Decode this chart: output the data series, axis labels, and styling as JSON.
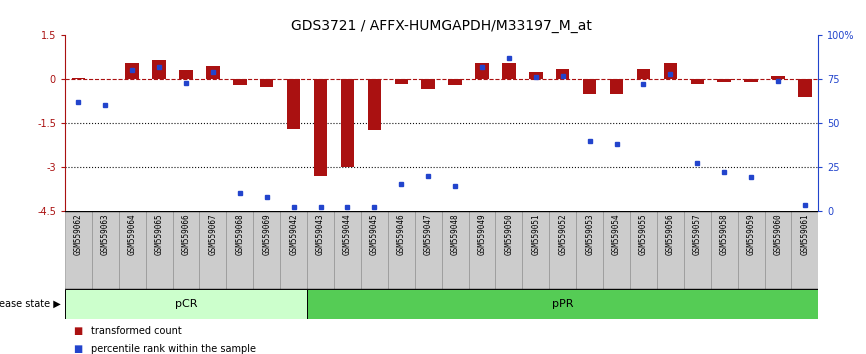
{
  "title": "GDS3721 / AFFX-HUMGAPDH/M33197_M_at",
  "samples": [
    "GSM559062",
    "GSM559063",
    "GSM559064",
    "GSM559065",
    "GSM559066",
    "GSM559067",
    "GSM559068",
    "GSM559069",
    "GSM559042",
    "GSM559043",
    "GSM559044",
    "GSM559045",
    "GSM559046",
    "GSM559047",
    "GSM559048",
    "GSM559049",
    "GSM559050",
    "GSM559051",
    "GSM559052",
    "GSM559053",
    "GSM559054",
    "GSM559055",
    "GSM559056",
    "GSM559057",
    "GSM559058",
    "GSM559059",
    "GSM559060",
    "GSM559061"
  ],
  "transformed_count": [
    0.05,
    0.02,
    0.55,
    0.65,
    0.3,
    0.45,
    -0.2,
    -0.25,
    -1.7,
    -3.3,
    -3.0,
    -1.75,
    -0.15,
    -0.35,
    -0.2,
    0.55,
    0.55,
    0.25,
    0.35,
    -0.5,
    -0.5,
    0.35,
    0.55,
    -0.15,
    -0.1,
    -0.1,
    0.1,
    -0.6
  ],
  "percentile": [
    62,
    60,
    80,
    82,
    73,
    79,
    10,
    8,
    2,
    2,
    2,
    2,
    15,
    20,
    14,
    82,
    87,
    76,
    77,
    40,
    38,
    72,
    78,
    27,
    22,
    19,
    74,
    3
  ],
  "disease_state": [
    "pCR",
    "pCR",
    "pCR",
    "pCR",
    "pCR",
    "pCR",
    "pCR",
    "pCR",
    "pCR",
    "pPR",
    "pPR",
    "pPR",
    "pPR",
    "pPR",
    "pPR",
    "pPR",
    "pPR",
    "pPR",
    "pPR",
    "pPR",
    "pPR",
    "pPR",
    "pPR",
    "pPR",
    "pPR",
    "pPR",
    "pPR",
    "pPR"
  ],
  "ylim": [
    -4.5,
    1.5
  ],
  "yticks_left": [
    1.5,
    0.0,
    -1.5,
    -3.0,
    -4.5
  ],
  "ytick_labels_left": [
    "1.5",
    "0",
    "-1.5",
    "-3",
    "-4.5"
  ],
  "right_yticks_pct": [
    100,
    75,
    50,
    25,
    0
  ],
  "bar_color": "#aa1111",
  "percentile_color": "#2244cc",
  "zero_line_color": "#aa1111",
  "dotted_line_color": "#111111",
  "pcr_color": "#ccffcc",
  "ppr_color": "#55cc55",
  "bg_color": "#ffffff",
  "label_bg_color": "#cccccc",
  "title_fontsize": 10,
  "tick_fontsize": 7,
  "sample_fontsize": 5.5
}
